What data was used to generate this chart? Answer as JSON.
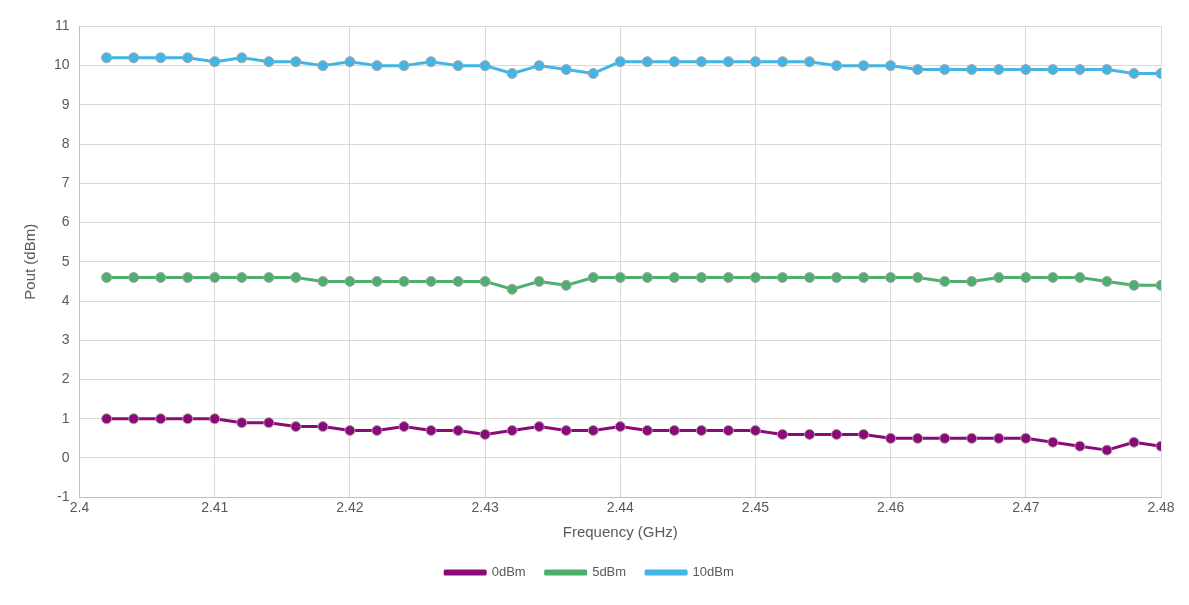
{
  "chart_data": {
    "type": "line",
    "xlabel": "Frequency (GHz)",
    "ylabel": "Pout (dBm)",
    "x": [
      2.402,
      2.404,
      2.406,
      2.408,
      2.41,
      2.412,
      2.414,
      2.416,
      2.418,
      2.42,
      2.422,
      2.424,
      2.426,
      2.428,
      2.43,
      2.432,
      2.434,
      2.436,
      2.438,
      2.44,
      2.442,
      2.444,
      2.446,
      2.448,
      2.45,
      2.452,
      2.454,
      2.456,
      2.458,
      2.46,
      2.462,
      2.464,
      2.466,
      2.468,
      2.47,
      2.472,
      2.474,
      2.476,
      2.478,
      2.48
    ],
    "series": [
      {
        "name": "0dBm",
        "color": "#8b0a78",
        "values": [
          1.0,
          1.0,
          1.0,
          1.0,
          1.0,
          0.9,
          0.9,
          0.8,
          0.8,
          0.7,
          0.7,
          0.8,
          0.7,
          0.7,
          0.6,
          0.7,
          0.8,
          0.7,
          0.7,
          0.8,
          0.7,
          0.7,
          0.7,
          0.7,
          0.7,
          0.6,
          0.6,
          0.6,
          0.6,
          0.5,
          0.5,
          0.5,
          0.5,
          0.5,
          0.5,
          0.4,
          0.3,
          0.2,
          0.4,
          0.3
        ]
      },
      {
        "name": "5dBm",
        "color": "#4caf6e",
        "values": [
          4.6,
          4.6,
          4.6,
          4.6,
          4.6,
          4.6,
          4.6,
          4.6,
          4.5,
          4.5,
          4.5,
          4.5,
          4.5,
          4.5,
          4.5,
          4.3,
          4.5,
          4.4,
          4.6,
          4.6,
          4.6,
          4.6,
          4.6,
          4.6,
          4.6,
          4.6,
          4.6,
          4.6,
          4.6,
          4.6,
          4.6,
          4.5,
          4.5,
          4.6,
          4.6,
          4.6,
          4.6,
          4.5,
          4.4,
          4.4
        ]
      },
      {
        "name": "10dBm",
        "color": "#41b6e6",
        "values": [
          10.2,
          10.2,
          10.2,
          10.2,
          10.1,
          10.2,
          10.1,
          10.1,
          10.0,
          10.1,
          10.0,
          10.0,
          10.1,
          10.0,
          10.0,
          9.8,
          10.0,
          9.9,
          9.8,
          10.1,
          10.1,
          10.1,
          10.1,
          10.1,
          10.1,
          10.1,
          10.1,
          10.0,
          10.0,
          10.0,
          9.9,
          9.9,
          9.9,
          9.9,
          9.9,
          9.9,
          9.9,
          9.9,
          9.8,
          9.8
        ]
      }
    ],
    "xlim": [
      2.4,
      2.48
    ],
    "xticks": [
      2.4,
      2.41,
      2.42,
      2.43,
      2.44,
      2.45,
      2.46,
      2.47,
      2.48
    ],
    "ylim": [
      -1,
      11
    ],
    "yticks": [
      -1,
      0,
      1,
      2,
      3,
      4,
      5,
      6,
      7,
      8,
      9,
      10,
      11
    ],
    "grid": true,
    "legend": "bottom",
    "marker": "circle",
    "line_style": "solid"
  }
}
